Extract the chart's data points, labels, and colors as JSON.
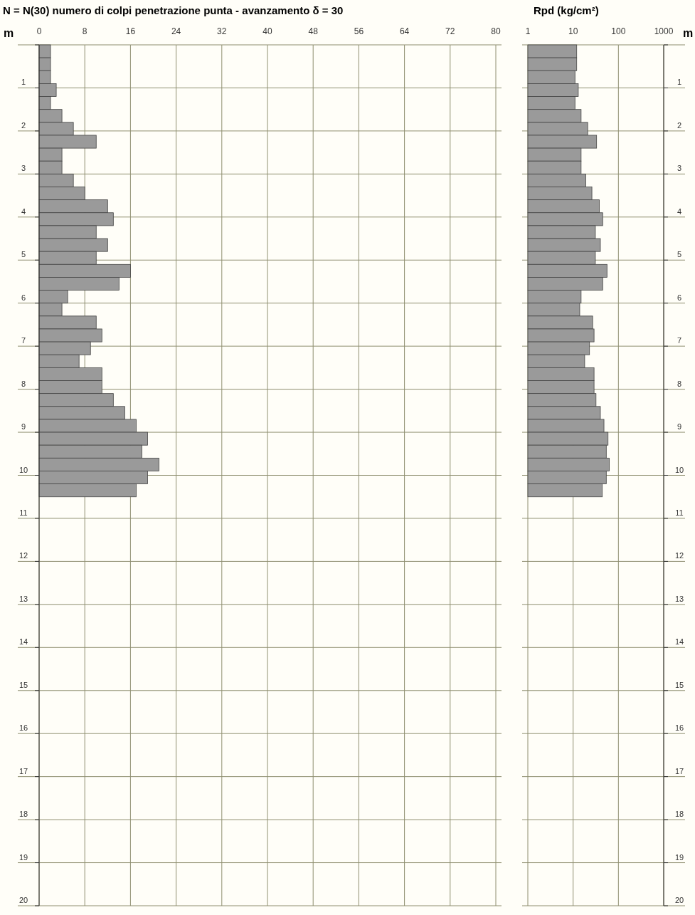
{
  "chart_data": [
    {
      "type": "bar",
      "orientation": "horizontal",
      "title": "N = N(30)  numero di colpi penetrazione punta  -  avanzamento δ = 30",
      "ylabel": "m",
      "x": [
        0.15,
        0.45,
        0.75,
        1.05,
        1.35,
        1.65,
        1.95,
        2.25,
        2.55,
        2.85,
        3.15,
        3.45,
        3.75,
        4.05,
        4.35,
        4.65,
        4.95,
        5.25,
        5.55,
        5.85,
        6.15,
        6.45,
        6.75,
        7.05,
        7.35,
        7.65,
        7.95,
        8.25,
        8.55,
        8.85,
        9.15,
        9.45,
        9.75,
        10.05,
        10.35
      ],
      "values": [
        2,
        2,
        2,
        3,
        2,
        4,
        6,
        10,
        4,
        4,
        6,
        8,
        12,
        13,
        10,
        12,
        10,
        16,
        14,
        5,
        4,
        10,
        11,
        9,
        7,
        11,
        11,
        13,
        15,
        17,
        19,
        18,
        21,
        19,
        17
      ],
      "color": "#9a9a9a",
      "xlim": [
        0,
        80
      ],
      "xticks": [
        0,
        8,
        16,
        24,
        32,
        40,
        48,
        56,
        64,
        72,
        80
      ],
      "ylim": [
        20,
        0
      ],
      "yticks": [
        {
          "value": 0,
          "label": null
        },
        1,
        2,
        3,
        4,
        5,
        6,
        7,
        8,
        9,
        10,
        11,
        12,
        13,
        14,
        15,
        16,
        17,
        18,
        19,
        20
      ],
      "grid": true
    },
    {
      "type": "bar",
      "orientation": "horizontal",
      "title": "Rpd (kg/cm²)",
      "ylabel": "m",
      "log": "x",
      "x": [
        0.15,
        0.45,
        0.75,
        1.05,
        1.35,
        1.65,
        1.95,
        2.25,
        2.55,
        2.85,
        3.15,
        3.45,
        3.75,
        4.05,
        4.35,
        4.65,
        4.95,
        5.25,
        5.55,
        5.85,
        6.15,
        6.45,
        6.75,
        7.05,
        7.35,
        7.65,
        7.95,
        8.25,
        8.55,
        8.85,
        9.15,
        9.45,
        9.75,
        10.05,
        10.35
      ],
      "values": [
        12,
        12,
        11,
        13,
        11,
        15,
        21,
        33,
        15,
        15,
        19,
        26,
        38,
        45,
        31,
        40,
        31,
        56,
        45,
        15,
        14,
        27,
        29,
        23,
        18,
        29,
        29,
        32,
        40,
        48,
        59,
        54,
        63,
        54,
        44
      ],
      "color": "#9a9a9a",
      "xlim": [
        1,
        1000
      ],
      "xticks": [
        1,
        10,
        100,
        1000
      ],
      "ylim": [
        20,
        0
      ],
      "yticks": [
        {
          "value": 0,
          "label": null
        },
        1,
        2,
        3,
        4,
        5,
        6,
        7,
        8,
        9,
        10,
        11,
        12,
        13,
        14,
        15,
        16,
        17,
        18,
        19,
        20
      ],
      "grid": true
    }
  ]
}
